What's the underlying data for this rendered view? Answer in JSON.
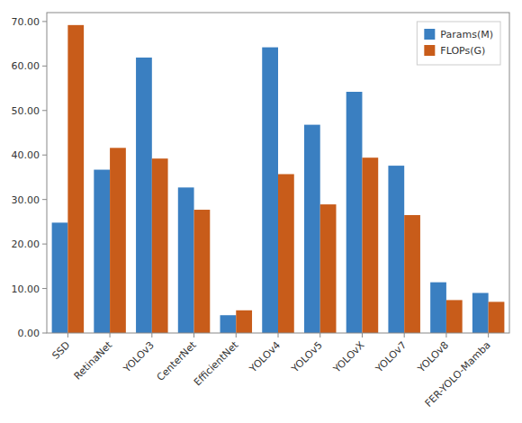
{
  "chart_data": {
    "type": "bar",
    "categories": [
      "SSD",
      "RetinaNet",
      "YOLOv3",
      "CenterNet",
      "EfficientNet",
      "YOLOv4",
      "YOLOv5",
      "YOLOvX",
      "YOLOv7",
      "YOLOv8",
      "FER-YOLO-Mamba"
    ],
    "series": [
      {
        "name": "Params(M)",
        "color": "#3a7fc1",
        "values": [
          24.8,
          36.7,
          61.9,
          32.7,
          4.0,
          64.2,
          46.8,
          54.2,
          37.6,
          11.4,
          9.0
        ]
      },
      {
        "name": "FLOPs(G)",
        "color": "#c85c1a",
        "values": [
          69.2,
          41.6,
          39.2,
          27.7,
          5.1,
          35.7,
          28.9,
          39.4,
          26.5,
          7.4,
          7.0
        ]
      }
    ],
    "ylim": [
      0,
      72
    ],
    "yticks": [
      {
        "value": 0,
        "label": "0.00"
      },
      {
        "value": 10,
        "label": "10.00"
      },
      {
        "value": 20,
        "label": "20.00"
      },
      {
        "value": 30,
        "label": "30.00"
      },
      {
        "value": 40,
        "label": "40.00"
      },
      {
        "value": 50,
        "label": "50.00"
      },
      {
        "value": 60,
        "label": "60.00"
      },
      {
        "value": 70,
        "label": "70.00"
      }
    ],
    "grid": false,
    "legend": "upper right"
  }
}
